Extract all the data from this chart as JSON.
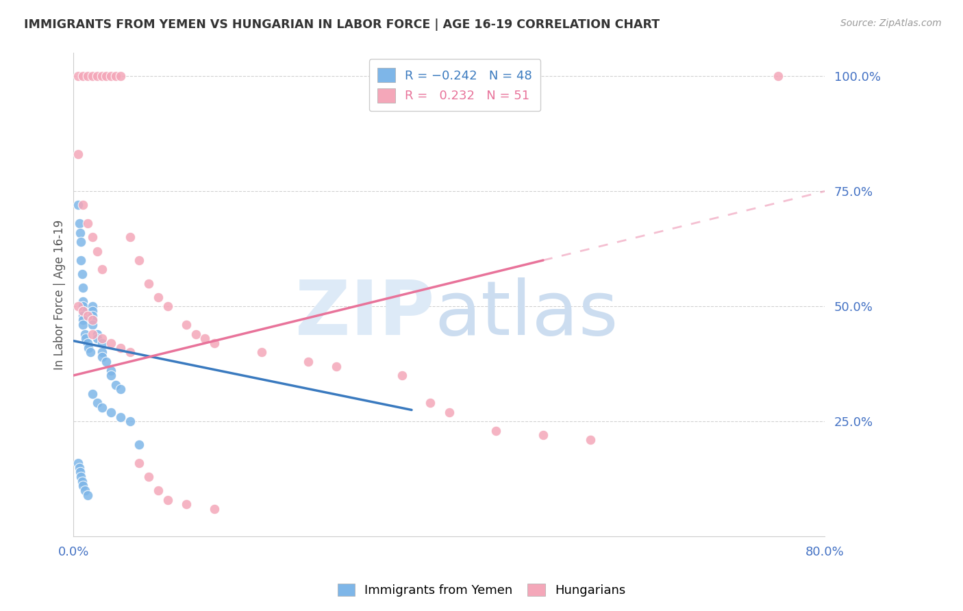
{
  "title": "IMMIGRANTS FROM YEMEN VS HUNGARIAN IN LABOR FORCE | AGE 16-19 CORRELATION CHART",
  "source": "Source: ZipAtlas.com",
  "ylabel": "In Labor Force | Age 16-19",
  "xlim": [
    0.0,
    0.8
  ],
  "ylim": [
    0.0,
    1.05
  ],
  "color_yemen": "#7eb6e8",
  "color_hungarian": "#f4a7b9",
  "color_trend_yemen": "#3a7abf",
  "color_trend_hungarian": "#e8739a",
  "background_color": "#ffffff",
  "legend_r1_color": "#3a7abf",
  "legend_r2_color": "#e8739a",
  "legend_n1_color": "#3a7abf",
  "legend_n2_color": "#e8739a",
  "yemen_x": [
    0.005,
    0.006,
    0.007,
    0.008,
    0.008,
    0.009,
    0.01,
    0.01,
    0.01,
    0.01,
    0.01,
    0.01,
    0.01,
    0.012,
    0.013,
    0.015,
    0.016,
    0.018,
    0.02,
    0.02,
    0.02,
    0.02,
    0.02,
    0.025,
    0.025,
    0.03,
    0.03,
    0.03,
    0.035,
    0.04,
    0.04,
    0.045,
    0.05,
    0.005,
    0.006,
    0.007,
    0.008,
    0.009,
    0.01,
    0.012,
    0.015,
    0.02,
    0.025,
    0.03,
    0.04,
    0.05,
    0.06,
    0.07
  ],
  "yemen_y": [
    0.72,
    0.68,
    0.66,
    0.64,
    0.6,
    0.57,
    0.54,
    0.51,
    0.5,
    0.49,
    0.48,
    0.47,
    0.46,
    0.44,
    0.43,
    0.42,
    0.41,
    0.4,
    0.5,
    0.49,
    0.48,
    0.47,
    0.46,
    0.44,
    0.43,
    0.42,
    0.4,
    0.39,
    0.38,
    0.36,
    0.35,
    0.33,
    0.32,
    0.16,
    0.15,
    0.14,
    0.13,
    0.12,
    0.11,
    0.1,
    0.09,
    0.31,
    0.29,
    0.28,
    0.27,
    0.26,
    0.25,
    0.2
  ],
  "hungarian_x": [
    0.005,
    0.01,
    0.015,
    0.02,
    0.025,
    0.03,
    0.035,
    0.04,
    0.045,
    0.05,
    0.005,
    0.01,
    0.015,
    0.02,
    0.025,
    0.03,
    0.005,
    0.01,
    0.015,
    0.02,
    0.06,
    0.07,
    0.08,
    0.09,
    0.1,
    0.12,
    0.13,
    0.14,
    0.15,
    0.2,
    0.25,
    0.28,
    0.35,
    0.38,
    0.4,
    0.45,
    0.5,
    0.55,
    0.75,
    0.02,
    0.03,
    0.04,
    0.05,
    0.06,
    0.07,
    0.08,
    0.09,
    0.1,
    0.12,
    0.15
  ],
  "hungarian_y": [
    1.0,
    1.0,
    1.0,
    1.0,
    1.0,
    1.0,
    1.0,
    1.0,
    1.0,
    1.0,
    0.83,
    0.72,
    0.68,
    0.65,
    0.62,
    0.58,
    0.5,
    0.49,
    0.48,
    0.47,
    0.65,
    0.6,
    0.55,
    0.52,
    0.5,
    0.46,
    0.44,
    0.43,
    0.42,
    0.4,
    0.38,
    0.37,
    0.35,
    0.29,
    0.27,
    0.23,
    0.22,
    0.21,
    1.0,
    0.44,
    0.43,
    0.42,
    0.41,
    0.4,
    0.16,
    0.13,
    0.1,
    0.08,
    0.07,
    0.06
  ],
  "trend_yemen_x0": 0.0,
  "trend_yemen_x1": 0.36,
  "trend_yemen_y0": 0.425,
  "trend_yemen_y1": 0.275,
  "trend_hungarian_solid_x0": 0.0,
  "trend_hungarian_solid_x1": 0.5,
  "trend_hungarian_solid_y0": 0.35,
  "trend_hungarian_solid_y1": 0.6,
  "trend_hungarian_dash_x0": 0.5,
  "trend_hungarian_dash_x1": 0.8,
  "trend_hungarian_dash_y0": 0.6,
  "trend_hungarian_dash_y1": 0.75
}
